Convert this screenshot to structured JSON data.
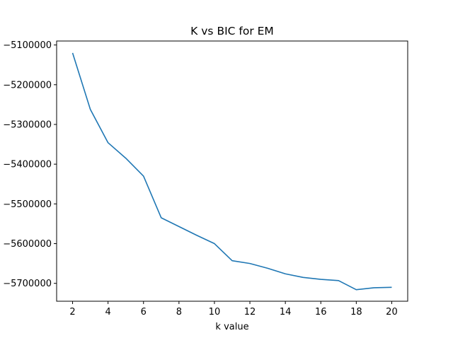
{
  "chart_data": {
    "type": "line",
    "title": "K vs BIC for EM",
    "xlabel": "k value",
    "ylabel": "",
    "x": [
      2,
      3,
      4,
      5,
      6,
      7,
      8,
      9,
      10,
      11,
      12,
      13,
      14,
      15,
      16,
      17,
      18,
      19,
      20
    ],
    "series": [
      {
        "values": [
          -5120000,
          -5262000,
          -5346000,
          -5385000,
          -5430000,
          -5535000,
          -5557000,
          -5579000,
          -5600000,
          -5643000,
          -5650000,
          -5662000,
          -5676000,
          -5685000,
          -5690000,
          -5693000,
          -5716000,
          -5711000,
          -5710000
        ],
        "color": "#1f77b4"
      }
    ],
    "xticks": [
      2,
      4,
      6,
      8,
      10,
      12,
      14,
      16,
      18,
      20
    ],
    "xtick_labels": [
      "2",
      "4",
      "6",
      "8",
      "10",
      "12",
      "14",
      "16",
      "18",
      "20"
    ],
    "yticks": [
      -5100000,
      -5200000,
      -5300000,
      -5400000,
      -5500000,
      -5600000,
      -5700000
    ],
    "ytick_labels": [
      "−5100000",
      "−5200000",
      "−5300000",
      "−5400000",
      "−5500000",
      "−5600000",
      "−5700000"
    ],
    "xlim": [
      1.1,
      20.9
    ],
    "ylim": [
      -5745000,
      -5090000
    ],
    "grid": false,
    "legend": false
  }
}
